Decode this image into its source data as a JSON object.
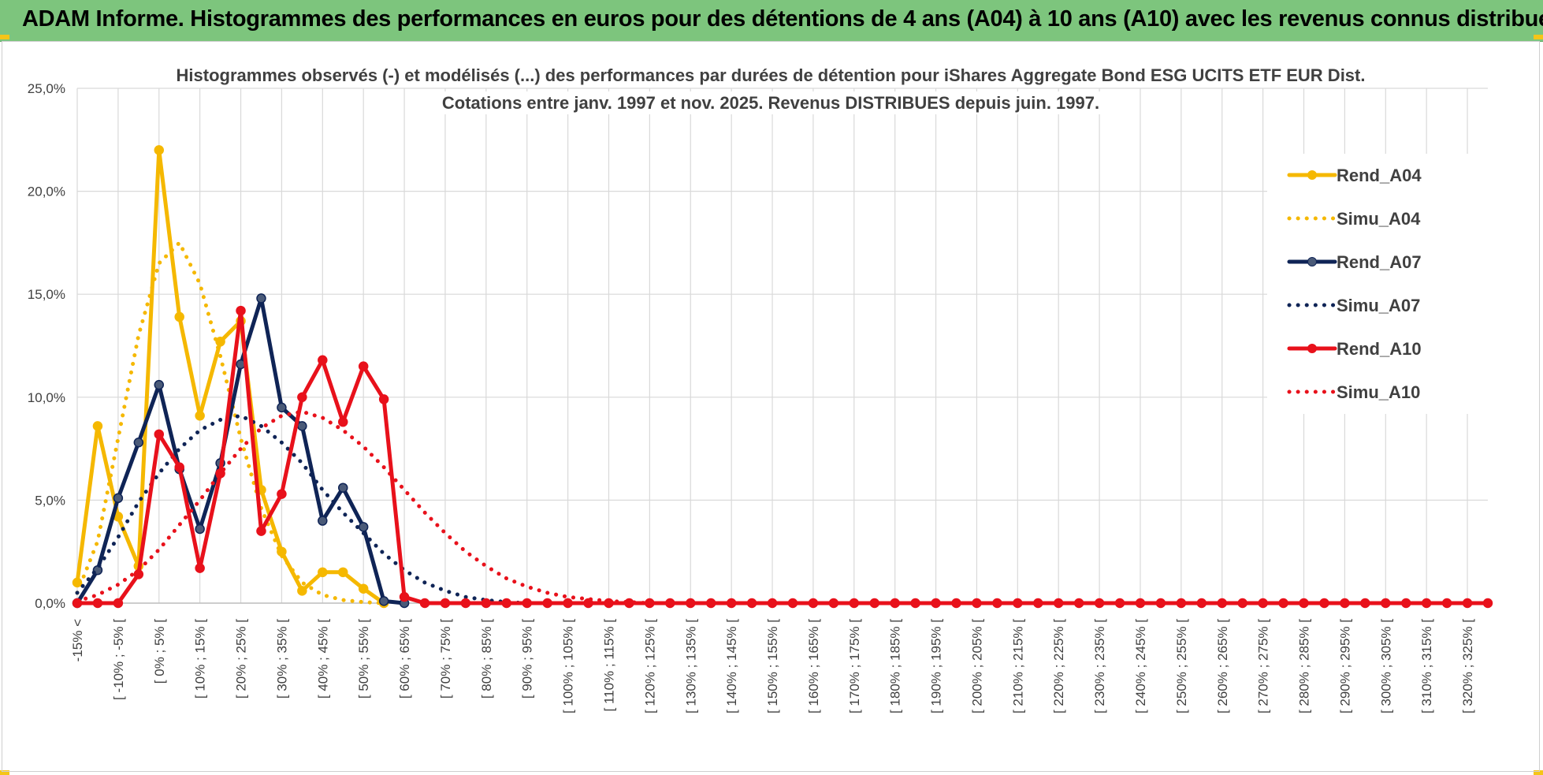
{
  "banner": {
    "title": "ADAM Informe. Histogrammes des performances en euros pour des détentions de 4 ans (A04) à 10 ans (A10) avec les revenus connus distribués"
  },
  "colors": {
    "banner_bg": "#7dc57d",
    "corner_accent": "#f5c518",
    "grid": "#d9d9d9"
  },
  "chart_data": {
    "type": "line",
    "title_lines": [
      "Histogrammes observés (-) et modélisés (...) des performances par durées de détention pour iShares Aggregate Bond ESG UCITS ETF EUR Dist.",
      "Cotations entre janv. 1997 et nov. 2025. Revenus DISTRIBUES depuis juin. 1997."
    ],
    "y_ticks": [
      "0,0%",
      "5,0%",
      "10,0%",
      "15,0%",
      "20,0%",
      "25,0%"
    ],
    "ylim": [
      0,
      25
    ],
    "grid": true,
    "legend_position": "right",
    "category_labels": [
      "-15% <",
      "[ -10% ; -5% [",
      "[ 0% ; 5% [",
      "[ 10% ; 15% [",
      "[ 20% ; 25% [",
      "[ 30% ; 35% [",
      "[ 40% ; 45% [",
      "[ 50% ; 55% [",
      "[ 60% ; 65% [",
      "[ 70% ; 75% [",
      "[ 80% ; 85% [",
      "[ 90% ; 95% [",
      "[ 100% ; 105% [",
      "[ 110% ; 115% [",
      "[ 120% ; 125% [",
      "[ 130% ; 135% [",
      "[ 140% ; 145% [",
      "[ 150% ; 155% [",
      "[ 160% ; 165% [",
      "[ 170% ; 175% [",
      "[ 180% ; 185% [",
      "[ 190% ; 195% [",
      "[ 200% ; 205% [",
      "[ 210% ; 215% [",
      "[ 220% ; 225% [",
      "[ 230% ; 235% [",
      "[ 240% ; 245% [",
      "[ 250% ; 255% [",
      "[ 260% ; 265% [",
      "[ 270% ; 275% [",
      "[ 280% ; 285% [",
      "[ 290% ; 295% [",
      "[ 300% ; 305% [",
      "[ 310% ; 315% [",
      "[ 320% ; 325% ["
    ],
    "series": [
      {
        "name": "Rend_A04",
        "color": "#f5b800",
        "style": "solid",
        "markers": true,
        "values": [
          1.0,
          8.6,
          4.2,
          1.8,
          22.0,
          13.9,
          9.1,
          12.7,
          13.7,
          5.5,
          2.5,
          0.6,
          1.5,
          1.5,
          0.7,
          0.0
        ]
      },
      {
        "name": "Simu_A04",
        "color": "#f5b800",
        "style": "dotted",
        "markers": false,
        "values": [
          0.5,
          3.0,
          8.0,
          13.0,
          16.5,
          17.5,
          15.5,
          12.0,
          8.0,
          4.6,
          2.3,
          1.0,
          0.4,
          0.15,
          0.05,
          0.0
        ]
      },
      {
        "name": "Rend_A07",
        "color": "#0f2456",
        "style": "solid",
        "markers": true,
        "values": [
          0.0,
          1.6,
          5.1,
          7.8,
          10.6,
          6.5,
          3.6,
          6.8,
          11.6,
          14.8,
          9.5,
          8.6,
          4.0,
          5.6,
          3.7,
          0.1,
          0.0
        ]
      },
      {
        "name": "Simu_A07",
        "color": "#0f2456",
        "style": "dotted",
        "markers": false,
        "values": [
          0.5,
          1.7,
          3.2,
          4.9,
          6.3,
          7.5,
          8.4,
          8.9,
          9.1,
          8.6,
          7.8,
          6.8,
          5.5,
          4.4,
          3.4,
          2.4,
          1.6,
          1.0,
          0.6,
          0.3,
          0.15,
          0.05,
          0.0
        ]
      },
      {
        "name": "Rend_A10",
        "color": "#e8111b",
        "style": "solid",
        "markers": true,
        "values": [
          0.0,
          0.0,
          0.0,
          1.4,
          8.2,
          6.6,
          1.7,
          6.3,
          14.2,
          3.5,
          5.3,
          10.0,
          11.8,
          8.8,
          11.5,
          9.9,
          0.3,
          0.0,
          0.0,
          0.0,
          0.0,
          0.0,
          0.0,
          0.0,
          0.0,
          0.0,
          0.0,
          0.0,
          0.0,
          0.0,
          0.0,
          0.0,
          0.0,
          0.0,
          0.0,
          0.0,
          0.0,
          0.0,
          0.0,
          0.0,
          0.0,
          0.0,
          0.0,
          0.0,
          0.0,
          0.0,
          0.0,
          0.0,
          0.0,
          0.0,
          0.0,
          0.0,
          0.0,
          0.0,
          0.0,
          0.0,
          0.0,
          0.0,
          0.0,
          0.0,
          0.0,
          0.0,
          0.0,
          0.0,
          0.0,
          0.0,
          0.0,
          0.0,
          0.0,
          0.0
        ]
      },
      {
        "name": "Simu_A10",
        "color": "#e8111b",
        "style": "dotted",
        "markers": false,
        "values": [
          0.1,
          0.4,
          0.9,
          1.6,
          2.6,
          3.8,
          5.0,
          6.3,
          7.5,
          8.5,
          9.1,
          9.3,
          9.0,
          8.4,
          7.6,
          6.6,
          5.5,
          4.4,
          3.4,
          2.5,
          1.8,
          1.2,
          0.8,
          0.5,
          0.3,
          0.2,
          0.1,
          0.05,
          0.0
        ]
      }
    ]
  }
}
